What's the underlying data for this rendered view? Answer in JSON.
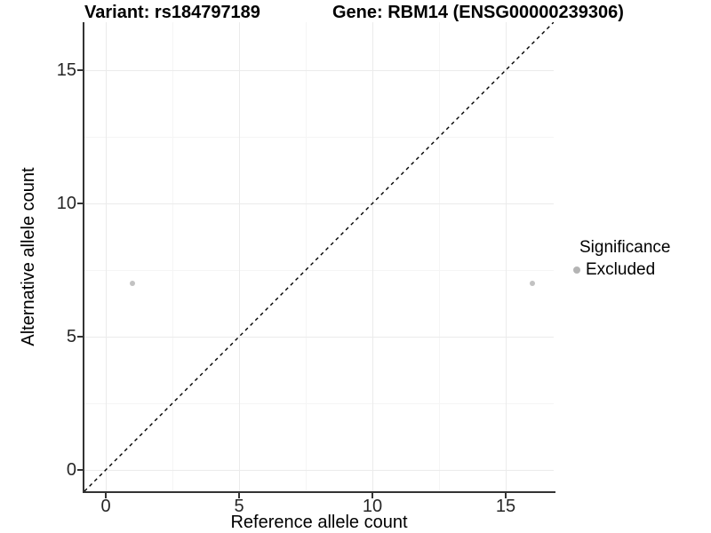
{
  "chart_data": {
    "type": "scatter",
    "titles": {
      "variant": "Variant: rs184797189",
      "gene": "Gene: RBM14 (ENSG00000239306)"
    },
    "xlabel": "Reference allele count",
    "ylabel": "Alternative allele count",
    "axes": {
      "xlim": [
        -0.8,
        16.8
      ],
      "ylim": [
        -0.8,
        16.8
      ],
      "x_major_ticks": [
        0,
        5,
        10,
        15
      ],
      "y_major_ticks": [
        0,
        5,
        10,
        15
      ],
      "x_minor_gridlines": [
        2.5,
        7.5,
        12.5
      ],
      "y_minor_gridlines": [
        2.5,
        7.5,
        12.5
      ],
      "grid": "on"
    },
    "points": [
      {
        "x": 1,
        "y": 7,
        "significance": "Excluded"
      },
      {
        "x": 16,
        "y": 7,
        "significance": "Excluded"
      }
    ],
    "reference_line": {
      "type": "identity",
      "from": [
        -0.8,
        -0.8
      ],
      "to": [
        16.8,
        16.8
      ],
      "style": "dashed",
      "color": "#000000"
    },
    "legend": {
      "title": "Significance",
      "position": "right",
      "items": [
        {
          "label": "Excluded",
          "color": "#b4b4b4"
        }
      ]
    },
    "colors": {
      "point": "#c2c2c2",
      "grid_major": "#ebebeb",
      "grid_minor": "#f5f5f5",
      "axis_line": "#333333",
      "tick_text": "#262626"
    }
  }
}
